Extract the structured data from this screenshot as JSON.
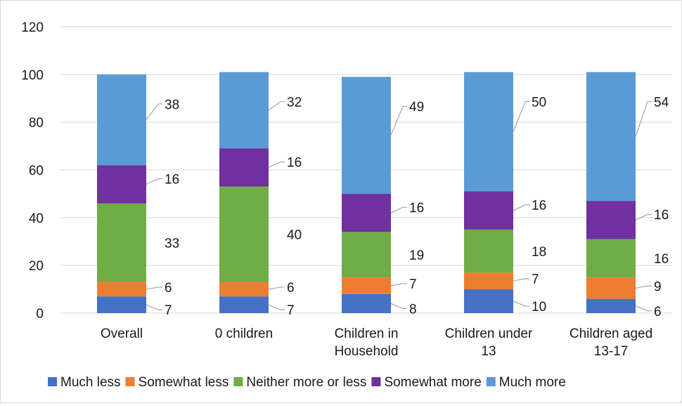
{
  "chart_data": {
    "type": "bar",
    "stacked": true,
    "title": "",
    "xlabel": "",
    "ylabel": "",
    "ylim": [
      0,
      120
    ],
    "yticks": [
      0,
      20,
      40,
      60,
      80,
      100,
      120
    ],
    "grid": true,
    "legend_position": "bottom",
    "categories": [
      [
        "Overall"
      ],
      [
        "0 children"
      ],
      [
        "Children in",
        "Household"
      ],
      [
        "Children under",
        "13"
      ],
      [
        "Children aged",
        "13-17"
      ]
    ],
    "series": [
      {
        "name": "Much less",
        "color": "#4472c4",
        "values": [
          7,
          7,
          8,
          10,
          6
        ]
      },
      {
        "name": "Somewhat less",
        "color": "#ed7d31",
        "values": [
          6,
          6,
          7,
          7,
          9
        ]
      },
      {
        "name": "Neither more or less",
        "color": "#70ad47",
        "values": [
          33,
          40,
          19,
          18,
          16
        ]
      },
      {
        "name": "Somewhat more",
        "color": "#7030a0",
        "values": [
          16,
          16,
          16,
          16,
          16
        ]
      },
      {
        "name": "Much more",
        "color": "#5b9bd5",
        "values": [
          38,
          32,
          49,
          50,
          54
        ]
      }
    ]
  }
}
